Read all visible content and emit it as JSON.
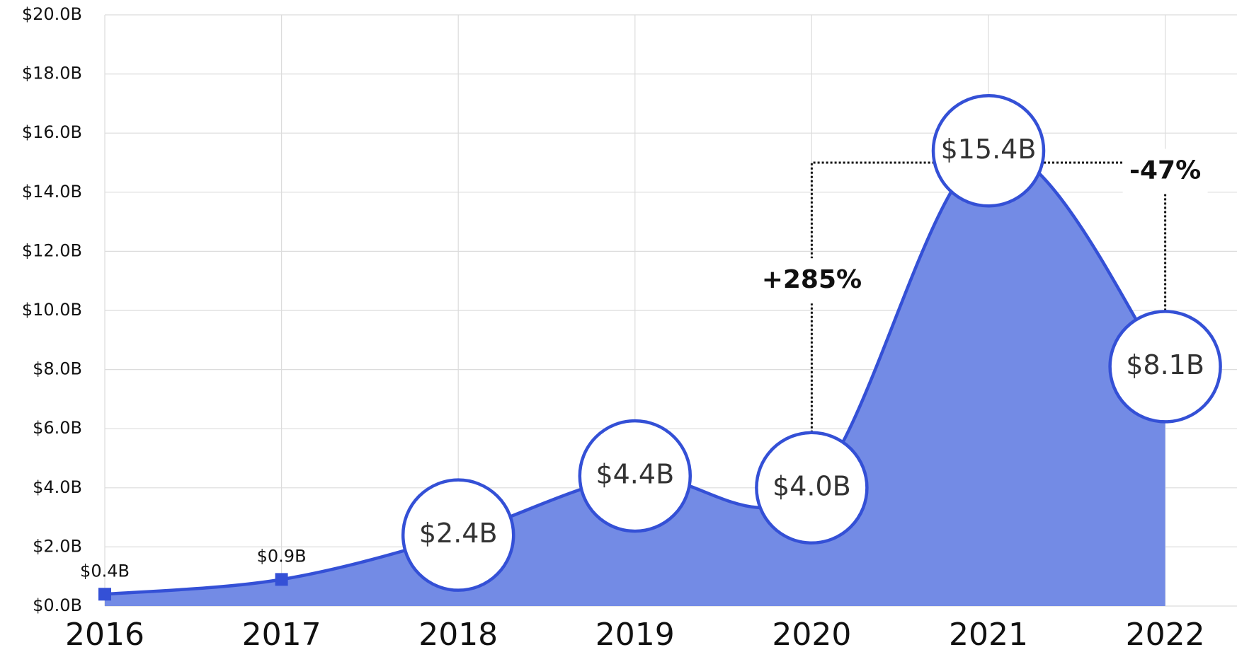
{
  "chart_data": {
    "type": "area",
    "categories": [
      "2016",
      "2017",
      "2018",
      "2019",
      "2020",
      "2021",
      "2022"
    ],
    "values": [
      0.4,
      0.9,
      2.4,
      4.4,
      4.0,
      15.4,
      8.1
    ],
    "value_labels": [
      "$0.4B",
      "$0.9B",
      "$2.4B",
      "$4.4B",
      "$4.0B",
      "$15.4B",
      "$8.1B"
    ],
    "color": "#3450d6",
    "fill": "#738be5",
    "ylim": [
      0,
      20
    ],
    "yticks": [
      {
        "value": 0,
        "label": "$0.0B"
      },
      {
        "value": 2,
        "label": "$2.0B"
      },
      {
        "value": 4,
        "label": "$4.0B"
      },
      {
        "value": 6,
        "label": "$6.0B"
      },
      {
        "value": 8,
        "label": "$8.0B"
      },
      {
        "value": 10,
        "label": "$10.0B"
      },
      {
        "value": 12,
        "label": "$12.0B"
      },
      {
        "value": 14,
        "label": "$14.0B"
      },
      {
        "value": 16,
        "label": "$16.0B"
      },
      {
        "value": 18,
        "label": "$18.0B"
      },
      {
        "value": 20,
        "label": "$20.0B"
      }
    ],
    "grid": true,
    "annotations": [
      "+285%",
      "-47%"
    ]
  }
}
